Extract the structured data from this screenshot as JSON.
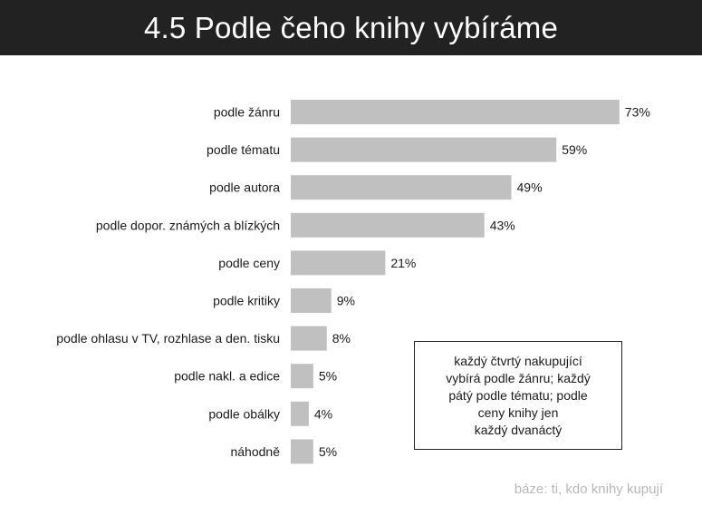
{
  "title": "4.5 Podle čeho knihy vybíráme",
  "chart_data": {
    "type": "bar",
    "orientation": "horizontal",
    "categories": [
      "podle žánru",
      "podle tématu",
      "podle autora",
      "podle dopor. známých a blízkých",
      "podle ceny",
      "podle kritiky",
      "podle ohlasu v TV, rozhlase a den. tisku",
      "podle nakl. a edice",
      "podle obálky",
      "náhodně"
    ],
    "values": [
      73,
      59,
      49,
      43,
      21,
      9,
      8,
      5,
      4,
      5
    ],
    "value_labels": [
      "73%",
      "59%",
      "49%",
      "43%",
      "21%",
      "9%",
      "8%",
      "5%",
      "4%",
      "5%"
    ],
    "unit": "%",
    "xlim": [
      0,
      100
    ],
    "grid": false,
    "legend": "none",
    "bar_color": "#c0c0c0"
  },
  "note": {
    "lines": [
      "každý čtvrtý nakupující",
      "vybírá podle žánru; každý",
      "pátý podle tématu; podle",
      "ceny knihy jen",
      "každý dvanáctý"
    ]
  },
  "base_note": "báze: ti, kdo knihy kupují",
  "colors": {
    "title_background": "#222222",
    "title_text": "#ffffff",
    "bar": "#c0c0c0",
    "base_note_text": "#b8b8b8"
  }
}
